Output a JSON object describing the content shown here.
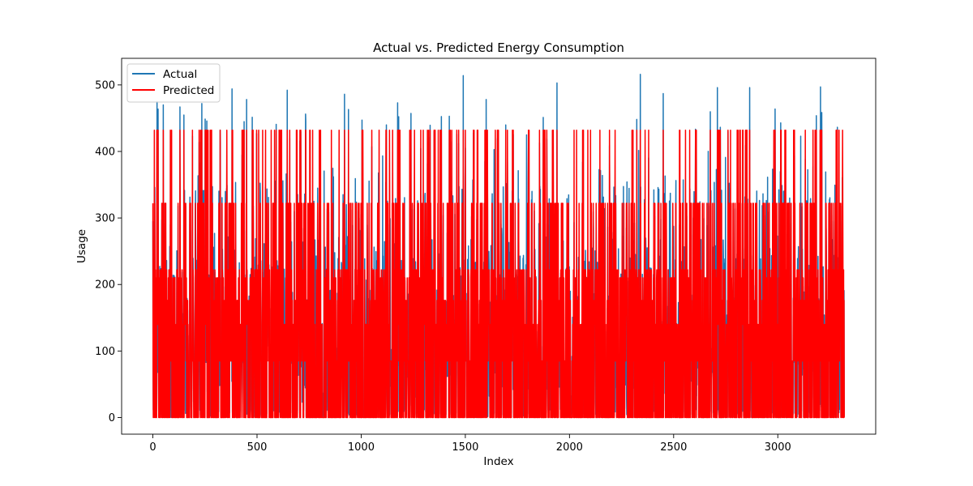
{
  "chart_data": {
    "type": "line",
    "title": "Actual vs. Predicted Energy Consumption",
    "xlabel": "Index",
    "ylabel": "Usage",
    "xlim": [
      -150,
      3470
    ],
    "ylim": [
      -25,
      540
    ],
    "xticks": [
      0,
      500,
      1000,
      1500,
      2000,
      2500,
      3000
    ],
    "yticks": [
      0,
      100,
      200,
      300,
      400,
      500
    ],
    "n_points": 3320,
    "grid": false,
    "legend_position": "top-left",
    "series": [
      {
        "name": "Actual",
        "color": "#1f77b4",
        "range": [
          0,
          516
        ],
        "notable_peaks": [
          [
            20,
            475
          ],
          [
            50,
            470
          ],
          [
            130,
            467
          ],
          [
            235,
            472
          ],
          [
            380,
            494
          ],
          [
            450,
            478
          ],
          [
            645,
            492
          ],
          [
            920,
            486
          ],
          [
            1175,
            473
          ],
          [
            1490,
            514
          ],
          [
            1600,
            478
          ],
          [
            1940,
            503
          ],
          [
            2340,
            516
          ],
          [
            2450,
            487
          ],
          [
            2710,
            496
          ],
          [
            2865,
            496
          ],
          [
            3205,
            497
          ]
        ]
      },
      {
        "name": "Predicted",
        "color": "#ff0000",
        "range": [
          0,
          432
        ],
        "levels": [
          0,
          85,
          140,
          176,
          210,
          222,
          322,
          432
        ]
      }
    ]
  }
}
